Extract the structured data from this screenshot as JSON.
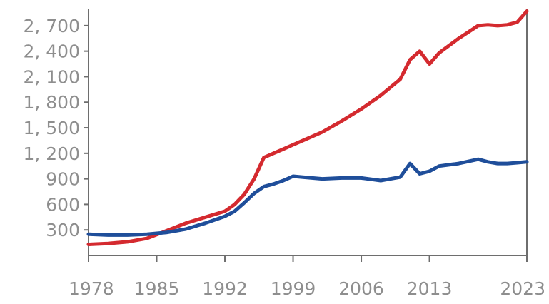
{
  "chart_data": {
    "type": "line",
    "title": "",
    "xlabel": "",
    "ylabel": "",
    "xlim": [
      1978,
      2023
    ],
    "ylim": [
      0,
      2900
    ],
    "x_ticks": [
      1978,
      1985,
      1992,
      1999,
      2006,
      2013,
      2023
    ],
    "x_tick_labels": [
      "1978",
      "1985",
      "1992",
      "1999",
      "2006",
      "2013",
      "2023"
    ],
    "y_ticks": [
      300,
      600,
      900,
      1200,
      1500,
      1800,
      2100,
      2400,
      2700
    ],
    "y_tick_labels": [
      "300",
      "600",
      "900",
      "1, 200",
      "1, 500",
      "1, 800",
      "2, 100",
      "2, 400",
      "2, 700"
    ],
    "grid": false,
    "legend": "none",
    "series": [
      {
        "color": "#d42a2f",
        "x": [
          1978,
          1980,
          1982,
          1984,
          1986,
          1988,
          1990,
          1992,
          1993,
          1994,
          1995,
          1996,
          1997,
          1998,
          1999,
          2000,
          2002,
          2004,
          2006,
          2008,
          2010,
          2011,
          2012,
          2013,
          2014,
          2016,
          2018,
          2019,
          2020,
          2021,
          2022,
          2023
        ],
        "y": [
          130,
          140,
          160,
          200,
          290,
          380,
          450,
          520,
          600,
          720,
          900,
          1150,
          1200,
          1250,
          1300,
          1350,
          1450,
          1580,
          1720,
          1880,
          2070,
          2300,
          2400,
          2250,
          2380,
          2550,
          2700,
          2710,
          2700,
          2710,
          2740,
          2870
        ]
      },
      {
        "color": "#1f4e9a",
        "x": [
          1978,
          1980,
          1982,
          1984,
          1986,
          1988,
          1990,
          1992,
          1993,
          1994,
          1995,
          1996,
          1997,
          1998,
          1999,
          2000,
          2002,
          2004,
          2006,
          2008,
          2010,
          2011,
          2012,
          2013,
          2014,
          2016,
          2018,
          2019,
          2020,
          2021,
          2022,
          2023
        ],
        "y": [
          250,
          240,
          240,
          250,
          270,
          310,
          380,
          460,
          520,
          620,
          730,
          810,
          840,
          880,
          930,
          920,
          900,
          910,
          910,
          880,
          920,
          1080,
          960,
          990,
          1050,
          1080,
          1130,
          1100,
          1080,
          1080,
          1090,
          1100
        ]
      }
    ]
  }
}
